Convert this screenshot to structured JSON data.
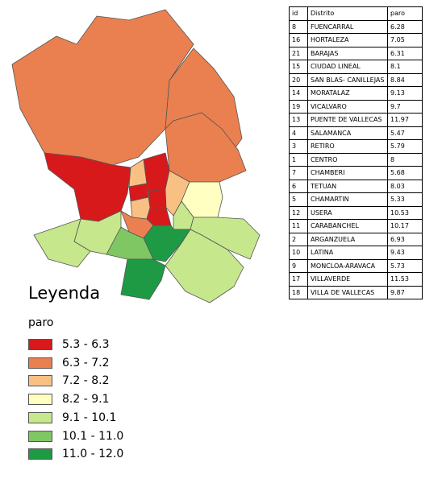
{
  "legend": {
    "title": "Leyenda",
    "subtitle": "paro",
    "items": [
      {
        "label": "5.3 - 6.3",
        "color": "#d7191c"
      },
      {
        "label": "6.3 - 7.2",
        "color": "#ea804f"
      },
      {
        "label": "7.2 - 8.2",
        "color": "#f9c084"
      },
      {
        "label": "8.2 - 9.1",
        "color": "#ffffc2"
      },
      {
        "label": "9.1 - 10.1",
        "color": "#c6e78c"
      },
      {
        "label": "10.1 - 11.0",
        "color": "#7fc763"
      },
      {
        "label": "11.0 - 12.0",
        "color": "#1e9a45"
      }
    ]
  },
  "table": {
    "header": [
      "id",
      "Distrito",
      "paro"
    ],
    "rows": [
      [
        8,
        "FUENCARRAL",
        6.28
      ],
      [
        16,
        "HORTALEZA",
        7.05
      ],
      [
        21,
        "BARAJAS",
        6.31
      ],
      [
        15,
        "CIUDAD LINEAL",
        8.1
      ],
      [
        20,
        "SAN BLAS- CANILLEJAS",
        8.84
      ],
      [
        14,
        "MORATALAZ",
        9.13
      ],
      [
        19,
        "VICALVARO",
        9.7
      ],
      [
        13,
        "PUENTE DE VALLECAS",
        11.97
      ],
      [
        4,
        "SALAMANCA",
        5.47
      ],
      [
        3,
        "RETIRO",
        5.79
      ],
      [
        1,
        "CENTRO",
        8
      ],
      [
        7,
        "CHAMBERI",
        5.68
      ],
      [
        6,
        "TETUAN",
        8.03
      ],
      [
        5,
        "CHAMARTIN",
        5.33
      ],
      [
        12,
        "USERA",
        10.53
      ],
      [
        11,
        "CARABANCHEL",
        10.17
      ],
      [
        2,
        "ARGANZUELA",
        6.93
      ],
      [
        10,
        "LATINA",
        9.43
      ],
      [
        9,
        "MONCLOA-ARAVACA",
        5.73
      ],
      [
        17,
        "VILLAVERDE",
        11.53
      ],
      [
        18,
        "VILLA DE VALLECAS",
        9.87
      ]
    ]
  }
}
